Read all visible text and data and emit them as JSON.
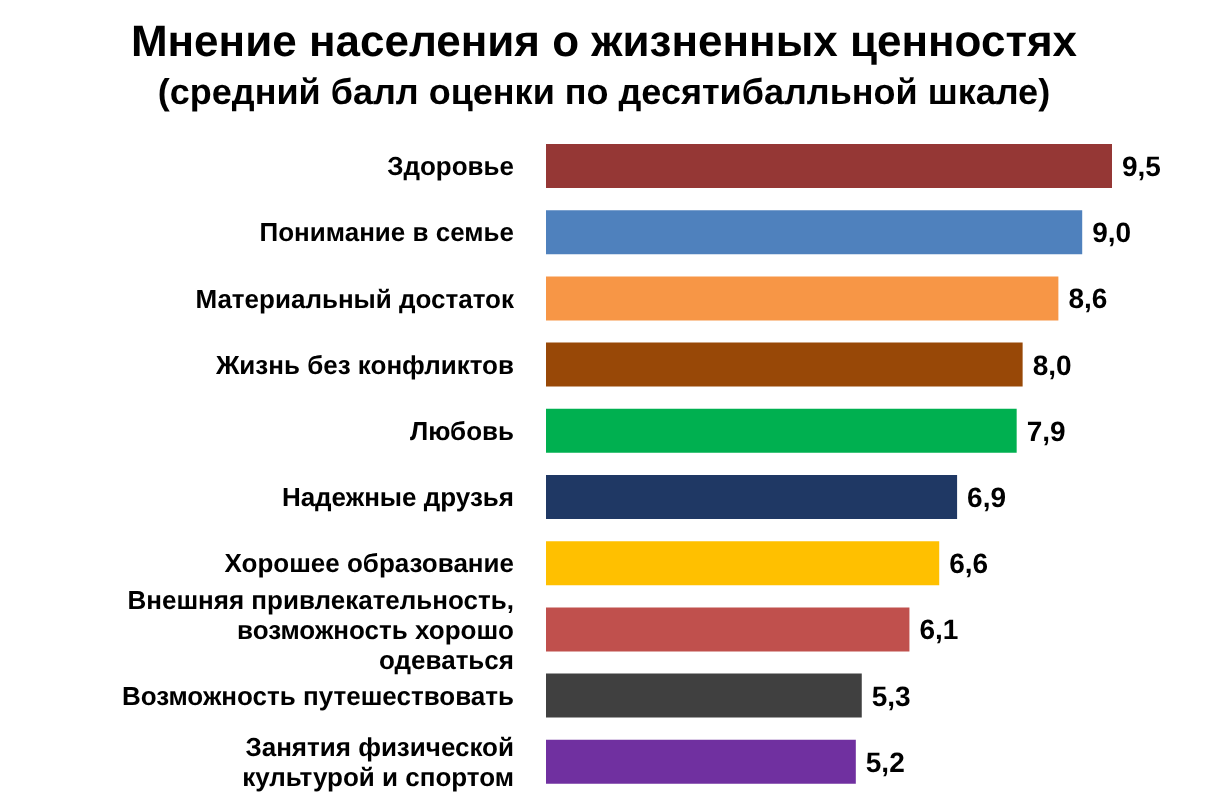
{
  "chart_data": {
    "type": "bar",
    "orientation": "horizontal",
    "title": "Мнение населения о жизненных ценностях",
    "subtitle": "(средний балл оценки по десятибалльной шкале)",
    "categories": [
      "Здоровье",
      "Понимание в семье",
      "Материальный достаток",
      "Жизнь без конфликтов",
      "Любовь",
      "Надежные друзья",
      "Хорошее образование",
      "Внешняя привлекательность, возможность хорошо одеваться",
      "Возможность путешествовать",
      "Занятия физической культурой и спортом"
    ],
    "values": [
      9.5,
      9.0,
      8.6,
      8.0,
      7.9,
      6.9,
      6.6,
      6.1,
      5.3,
      5.2
    ],
    "value_labels": [
      "9,5",
      "9,0",
      "8,6",
      "8,0",
      "7,9",
      "6,9",
      "6,6",
      "6,1",
      "5,3",
      "5,2"
    ],
    "colors": [
      "#953735",
      "#4f81bd",
      "#f79646",
      "#984807",
      "#00b050",
      "#1f3864",
      "#ffc000",
      "#c0504d",
      "#404040",
      "#7030a0"
    ],
    "grid": false,
    "legend": false
  }
}
